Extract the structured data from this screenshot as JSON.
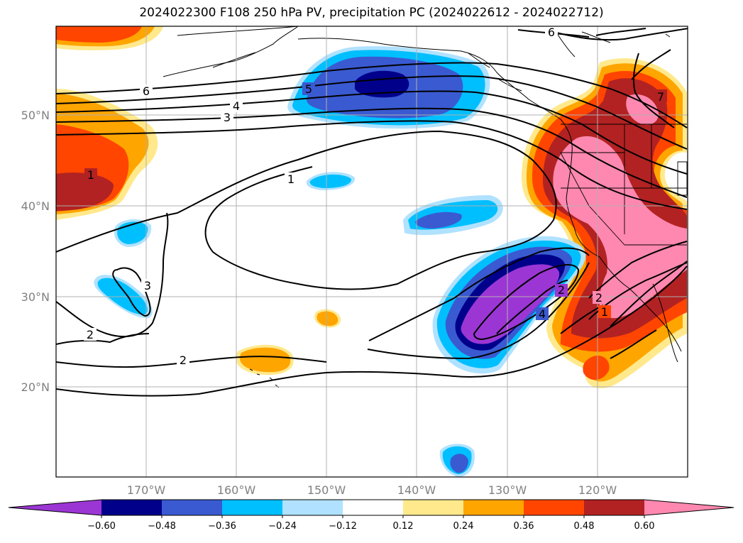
{
  "title": "2024022300 F108 250 hPa PV, precipitation PC (2024022612 - 2024022712)",
  "lat_labels": [
    "50°N",
    "40°N",
    "30°N",
    "20°N"
  ],
  "lon_labels": [
    "170°W",
    "160°W",
    "150°W",
    "140°W",
    "130°W",
    "120°W"
  ],
  "contour_labels": [
    "6",
    "5",
    "4",
    "3",
    "1",
    "1",
    "6",
    "7",
    "2",
    "4",
    "3",
    "2",
    "2",
    "2",
    "1"
  ],
  "colorbar": {
    "ticks": [
      "−0.60",
      "−0.48",
      "−0.36",
      "−0.24",
      "−0.12",
      "0.12",
      "0.24",
      "0.36",
      "0.48",
      "0.60"
    ],
    "colors": [
      "#9b36d4",
      "#00008b",
      "#3a5ad1",
      "#00bfff",
      "#b0e2ff",
      "#ffffff",
      "#ffe98c",
      "#ffa500",
      "#ff4500",
      "#b22222",
      "#ff88b0"
    ]
  }
}
